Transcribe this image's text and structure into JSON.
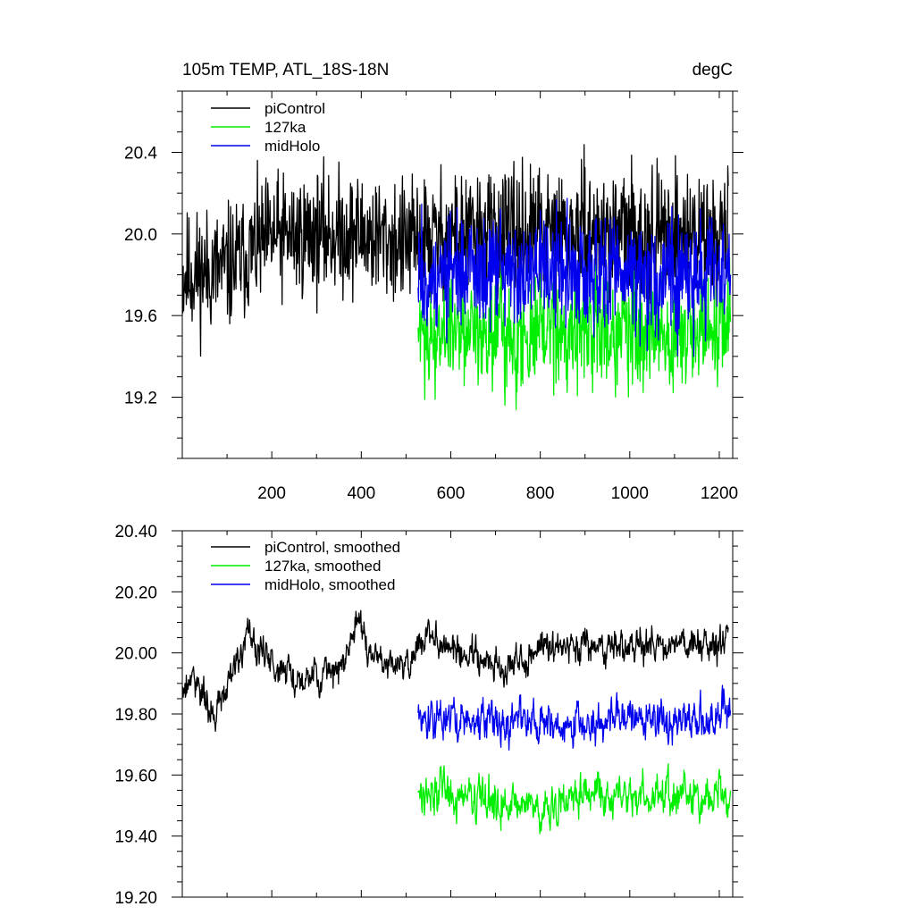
{
  "chart_data": [
    {
      "type": "line",
      "title_left": "105m TEMP, ATL_18S-18N",
      "title_right": "degC",
      "xlabel": "",
      "ylabel": "",
      "xlim": [
        0,
        1230
      ],
      "ylim": [
        18.9,
        20.7
      ],
      "x_ticks": [
        200,
        400,
        600,
        800,
        1000,
        1200
      ],
      "x_tick_labels": [
        "200",
        "400",
        "600",
        "800",
        "1000",
        "1200"
      ],
      "y_ticks": [
        19.2,
        19.6,
        20.0,
        20.4
      ],
      "y_tick_labels": [
        "19.2",
        "19.6",
        "20.0",
        "20.4"
      ],
      "legend_position": "top-left",
      "series": [
        {
          "name": "piControl",
          "color": "#000000",
          "x_start": 1,
          "x_end": 1220,
          "mean": 19.96,
          "trend": [
            [
              0,
              19.8
            ],
            [
              100,
              19.83
            ],
            [
              200,
              19.98
            ],
            [
              300,
              20.0
            ],
            [
              400,
              20.0
            ],
            [
              500,
              19.95
            ],
            [
              600,
              20.0
            ],
            [
              800,
              20.0
            ],
            [
              1000,
              20.0
            ],
            [
              1220,
              20.0
            ]
          ],
          "noise": 0.15,
          "smooth": 0
        },
        {
          "name": "127ka",
          "color": "#00ee00",
          "x_start": 527,
          "x_end": 1225,
          "mean": 19.52,
          "trend": [
            [
              527,
              19.52
            ],
            [
              1225,
              19.52
            ]
          ],
          "noise": 0.14,
          "smooth": 0
        },
        {
          "name": "midHolo",
          "color": "#0000ee",
          "x_start": 527,
          "x_end": 1225,
          "mean": 19.8,
          "trend": [
            [
              527,
              19.8
            ],
            [
              1225,
              19.8
            ]
          ],
          "noise": 0.14,
          "smooth": 0
        }
      ]
    },
    {
      "type": "line",
      "title_left": "",
      "title_right": "",
      "xlabel": "",
      "ylabel": "",
      "xlim": [
        0,
        1230
      ],
      "ylim": [
        19.2,
        20.4
      ],
      "x_ticks": [
        200,
        400,
        600,
        800,
        1000,
        1200
      ],
      "x_tick_labels": [],
      "y_ticks": [
        19.2,
        19.4,
        19.6,
        19.8,
        20.0,
        20.2,
        20.4
      ],
      "y_tick_labels": [
        "19.20",
        "19.40",
        "19.60",
        "19.80",
        "20.00",
        "20.20",
        "20.40"
      ],
      "legend_position": "top-left",
      "series": [
        {
          "name": "piControl, smoothed",
          "color": "#000000",
          "x_start": 1,
          "x_end": 1220,
          "trend": [
            [
              0,
              19.88
            ],
            [
              30,
              19.92
            ],
            [
              70,
              19.78
            ],
            [
              110,
              19.92
            ],
            [
              140,
              20.05
            ],
            [
              200,
              19.97
            ],
            [
              250,
              19.92
            ],
            [
              300,
              19.93
            ],
            [
              350,
              19.93
            ],
            [
              390,
              20.1
            ],
            [
              420,
              20.0
            ],
            [
              460,
              19.97
            ],
            [
              500,
              19.96
            ],
            [
              540,
              20.05
            ],
            [
              600,
              20.02
            ],
            [
              700,
              19.95
            ],
            [
              800,
              20.02
            ],
            [
              900,
              20.02
            ],
            [
              1000,
              20.02
            ],
            [
              1100,
              20.03
            ],
            [
              1220,
              20.03
            ]
          ],
          "noise": 0.05,
          "smooth": 1
        },
        {
          "name": "127ka, smoothed",
          "color": "#00ee00",
          "x_start": 527,
          "x_end": 1225,
          "trend": [
            [
              527,
              19.55
            ],
            [
              700,
              19.52
            ],
            [
              800,
              19.48
            ],
            [
              900,
              19.55
            ],
            [
              1000,
              19.52
            ],
            [
              1100,
              19.53
            ],
            [
              1225,
              19.52
            ]
          ],
          "noise": 0.06,
          "smooth": 1
        },
        {
          "name": "midHolo, smoothed",
          "color": "#0000ee",
          "x_start": 527,
          "x_end": 1225,
          "trend": [
            [
              527,
              19.77
            ],
            [
              700,
              19.78
            ],
            [
              800,
              19.77
            ],
            [
              900,
              19.76
            ],
            [
              1000,
              19.8
            ],
            [
              1100,
              19.78
            ],
            [
              1225,
              19.8
            ]
          ],
          "noise": 0.06,
          "smooth": 1
        }
      ]
    }
  ]
}
